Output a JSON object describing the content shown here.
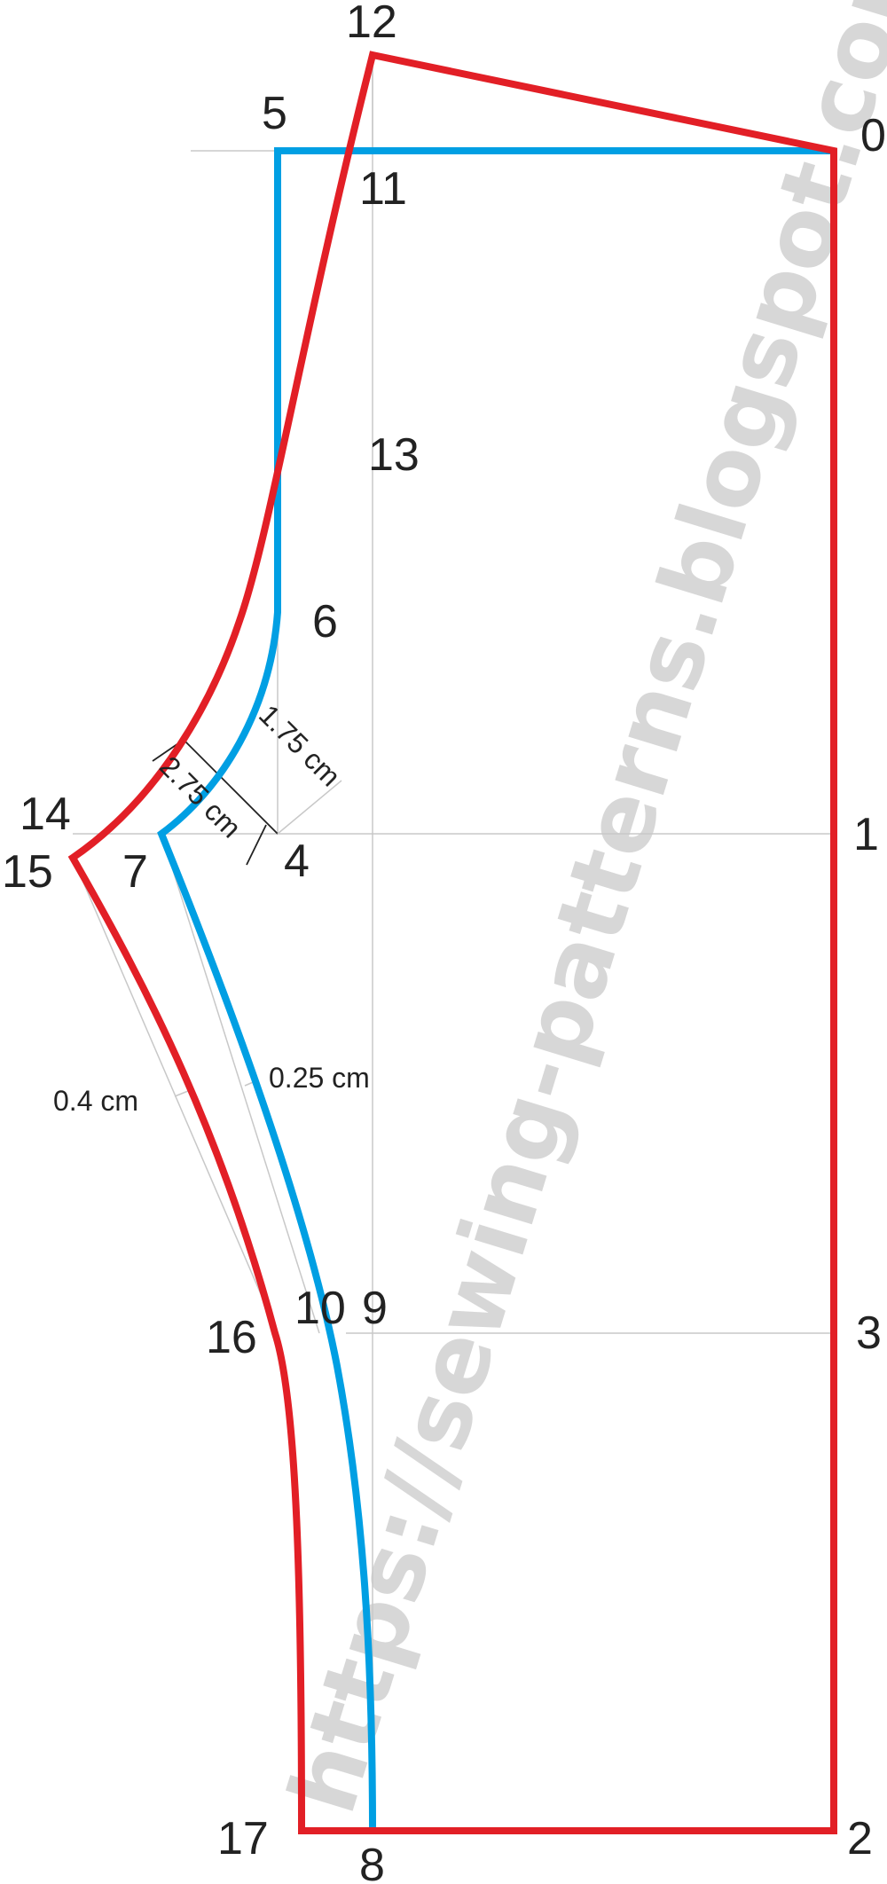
{
  "points": {
    "p0": "0",
    "p1": "1",
    "p2": "2",
    "p3": "3",
    "p4": "4",
    "p5": "5",
    "p6": "6",
    "p7": "7",
    "p8": "8",
    "p9": "9",
    "p10": "10",
    "p11": "11",
    "p12": "12",
    "p13": "13",
    "p14": "14",
    "p15": "15",
    "p16": "16",
    "p17": "17"
  },
  "measurements": {
    "crotch_inner": "1.75 cm",
    "crotch_outer": "2.75 cm",
    "inseam_front": "0.25 cm",
    "inseam_back": "0.4 cm"
  },
  "watermark": "https://sewing-patterns.blogspot.com/",
  "colors": {
    "back_piece": "#e21f26",
    "front_piece": "#009fe3",
    "guides": "#c8c8c8"
  }
}
